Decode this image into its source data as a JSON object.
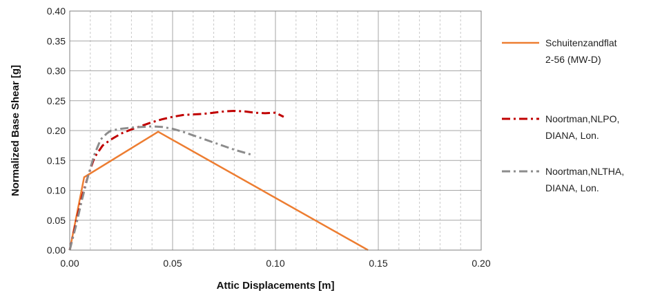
{
  "chart_data": {
    "type": "line",
    "xlabel": "Attic Displacements [m]",
    "ylabel": "Normalized Base Shear [g]",
    "xlim": [
      0,
      0.2
    ],
    "ylim": [
      0,
      0.4
    ],
    "xticks": [
      0,
      0.05,
      0.1,
      0.15,
      0.2
    ],
    "xtick_labels": [
      "0.00",
      "0.05",
      "0.10",
      "0.15",
      "0.20"
    ],
    "yticks": [
      0,
      0.05,
      0.1,
      0.15,
      0.2,
      0.25,
      0.3,
      0.35,
      0.4
    ],
    "ytick_labels": [
      "0.00",
      "0.05",
      "0.10",
      "0.15",
      "0.20",
      "0.25",
      "0.30",
      "0.35",
      "0.40"
    ],
    "x_minor_step": 0.01,
    "grid": true,
    "legend_position": "right",
    "series": [
      {
        "name_lines": [
          "Schuitenzandflat",
          "2-56 (MW-D)"
        ],
        "color": "#ED7D31",
        "style": "solid",
        "x": [
          0,
          0.007,
          0.043,
          0.145
        ],
        "y": [
          0,
          0.122,
          0.198,
          0
        ]
      },
      {
        "name_lines": [
          "Noortman,NLPO,",
          "DIANA, Lon."
        ],
        "color": "#C00000",
        "style": "dashdot",
        "x": [
          0,
          0.003,
          0.006,
          0.009,
          0.012,
          0.016,
          0.02,
          0.025,
          0.03,
          0.035,
          0.04,
          0.045,
          0.05,
          0.055,
          0.06,
          0.065,
          0.07,
          0.075,
          0.08,
          0.085,
          0.09,
          0.095,
          0.1,
          0.104
        ],
        "y": [
          0,
          0.045,
          0.09,
          0.125,
          0.155,
          0.175,
          0.185,
          0.195,
          0.202,
          0.208,
          0.214,
          0.219,
          0.223,
          0.226,
          0.227,
          0.228,
          0.23,
          0.232,
          0.233,
          0.232,
          0.23,
          0.229,
          0.23,
          0.223
        ]
      },
      {
        "name_lines": [
          "Noortman,NLTHA,",
          "DIANA, Lon."
        ],
        "color": "#8C8C8C",
        "style": "dashdot",
        "x": [
          0,
          0.003,
          0.006,
          0.009,
          0.012,
          0.015,
          0.018,
          0.02,
          0.025,
          0.03,
          0.035,
          0.04,
          0.045,
          0.05,
          0.055,
          0.06,
          0.065,
          0.07,
          0.075,
          0.08,
          0.085,
          0.088
        ],
        "y": [
          0,
          0.04,
          0.085,
          0.125,
          0.16,
          0.185,
          0.195,
          0.2,
          0.203,
          0.205,
          0.206,
          0.207,
          0.206,
          0.203,
          0.198,
          0.192,
          0.186,
          0.18,
          0.174,
          0.168,
          0.163,
          0.16
        ]
      }
    ]
  }
}
